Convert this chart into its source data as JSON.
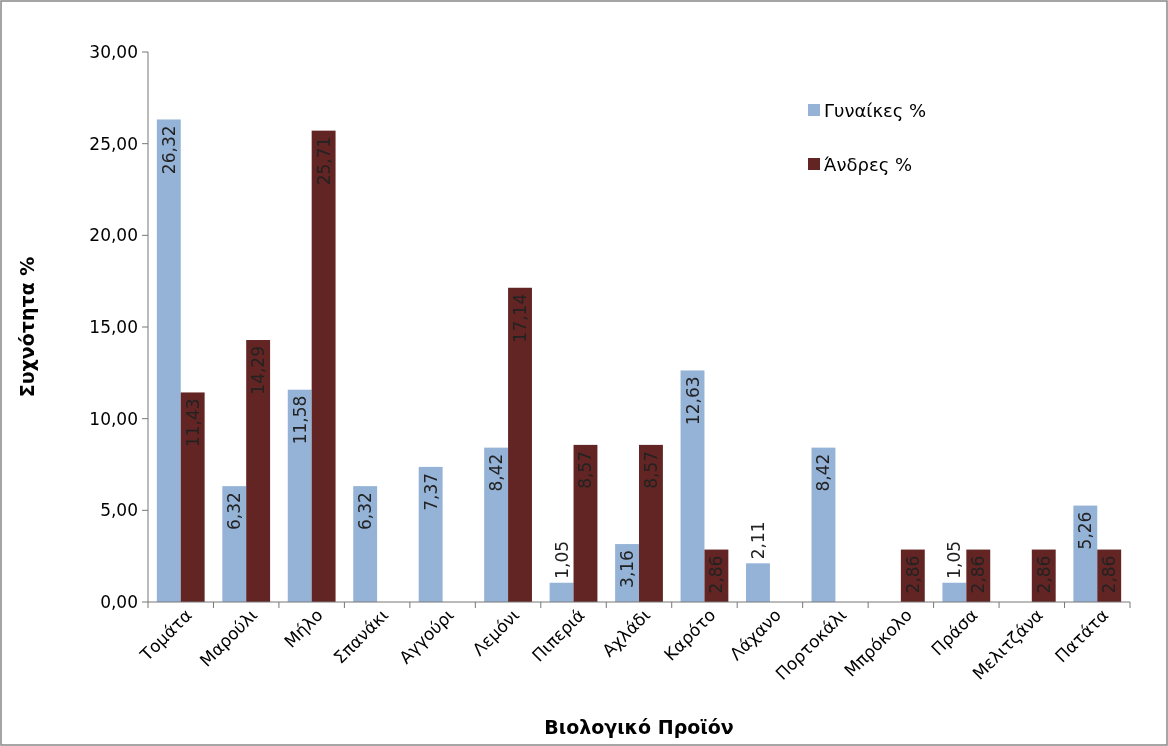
{
  "chart_data": {
    "type": "bar",
    "xlabel": "Βιολογικό Προϊόν",
    "ylabel": "Συχνότητα %",
    "categories": [
      "Τομάτα",
      "Μαρούλι",
      "Μήλο",
      "Σπανάκι",
      "Αγγούρι",
      "Λεμόνι",
      "Πιπεριά",
      "Αχλάδι",
      "Καρότο",
      "Λάχανο",
      "Πορτοκάλι",
      "Μπρόκολο",
      "Πράσα",
      "Μελιτζάνα",
      "Πατάτα"
    ],
    "series": [
      {
        "name": "Γυναίκες %",
        "color": "#95b3d7",
        "values": [
          26.32,
          6.32,
          11.58,
          6.32,
          7.37,
          8.42,
          1.05,
          3.16,
          12.63,
          2.11,
          8.42,
          null,
          1.05,
          null,
          5.26
        ],
        "value_labels": [
          "26,32",
          "6,32",
          "11,58",
          "6,32",
          "7,37",
          "8,42",
          "1,05",
          "3,16",
          "12,63",
          "2,11",
          "8,42",
          null,
          "1,05",
          null,
          "5,26"
        ]
      },
      {
        "name": "Άνδρες %",
        "color": "#632523",
        "values": [
          11.43,
          14.29,
          25.71,
          null,
          null,
          17.14,
          8.57,
          8.57,
          2.86,
          null,
          null,
          2.86,
          2.86,
          2.86,
          2.86
        ],
        "value_labels": [
          "11,43",
          "14,29",
          "25,71",
          null,
          null,
          "17,14",
          "8,57",
          "8,57",
          "2,86",
          null,
          null,
          "2,86",
          "2,86",
          "2,86",
          "2,86"
        ]
      }
    ],
    "ylim": [
      0,
      30
    ],
    "yticks": [
      {
        "value": 0,
        "label": "0,00"
      },
      {
        "value": 5,
        "label": "5,00"
      },
      {
        "value": 10,
        "label": "10,00"
      },
      {
        "value": 15,
        "label": "15,00"
      },
      {
        "value": 20,
        "label": "20,00"
      },
      {
        "value": 25,
        "label": "25,00"
      },
      {
        "value": 30,
        "label": "30,00"
      }
    ],
    "grid": false,
    "legend": "top right"
  }
}
